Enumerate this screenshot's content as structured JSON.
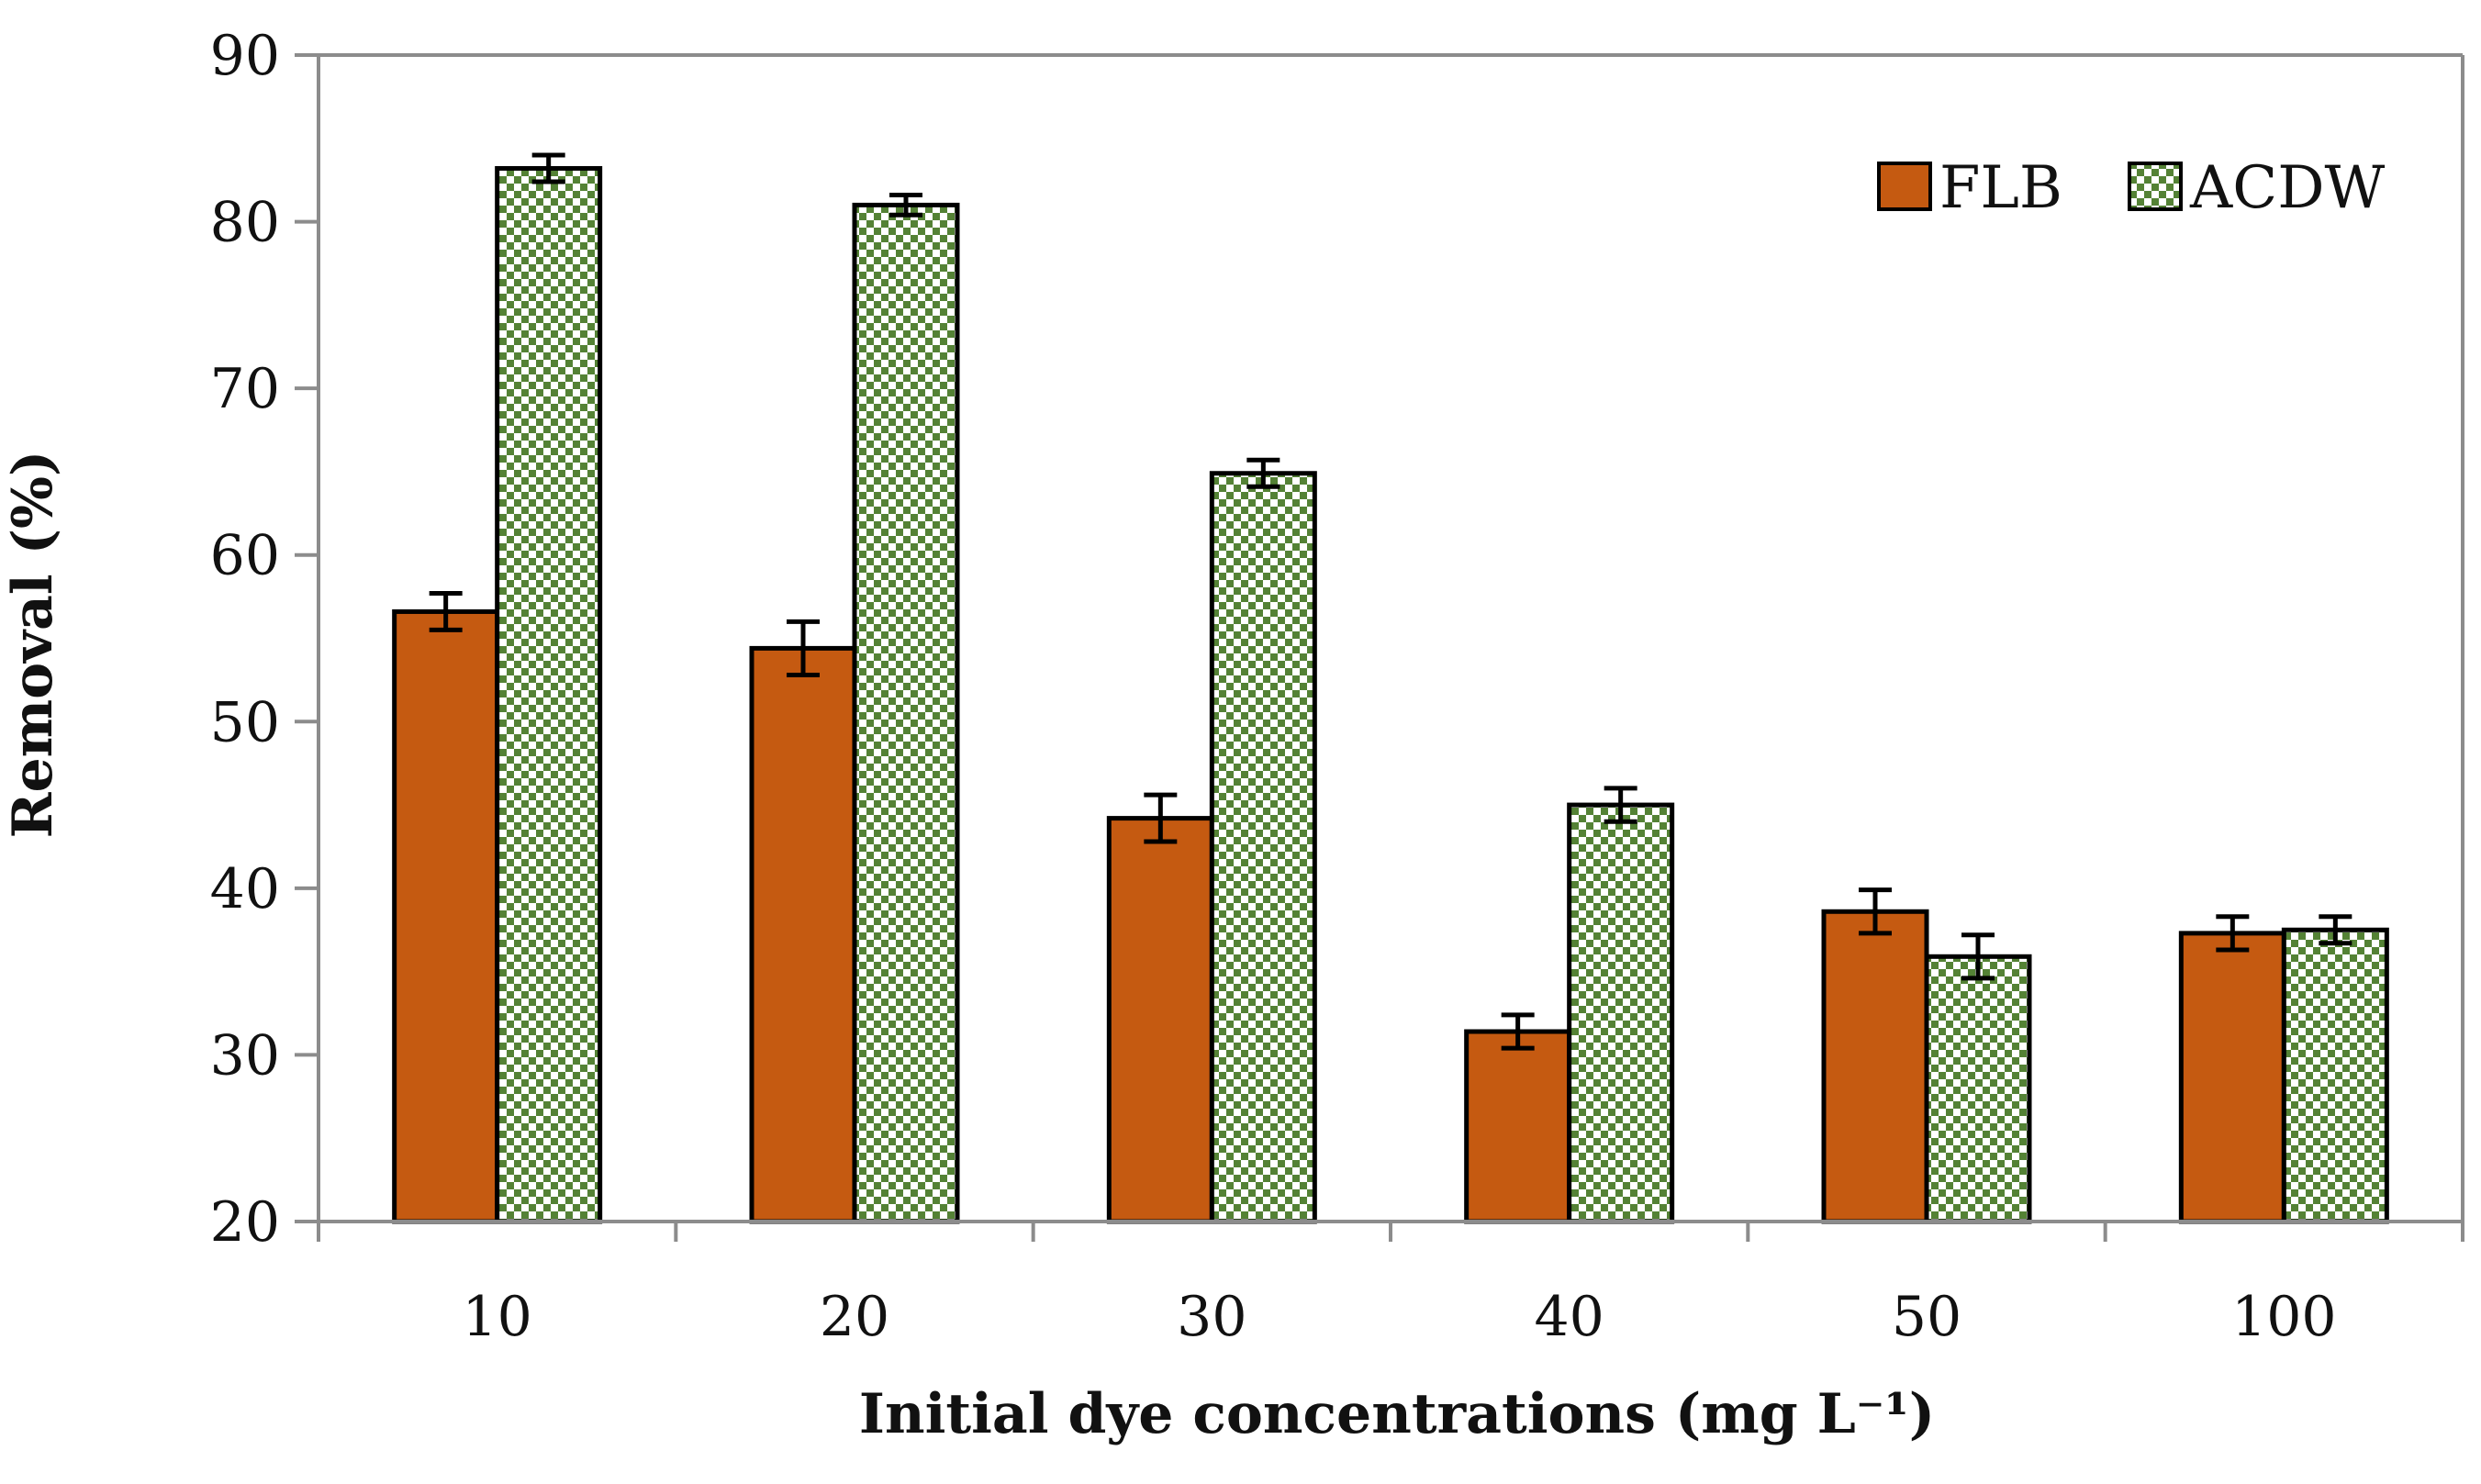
{
  "chart_data": {
    "type": "bar",
    "title": "",
    "xlabel": "Initial dye concentrations (mg L⁻¹)",
    "ylabel": "Removal (%)",
    "categories": [
      "10",
      "20",
      "30",
      "40",
      "50",
      "100"
    ],
    "ylim": [
      20,
      90
    ],
    "yticks": [
      20,
      30,
      40,
      50,
      60,
      70,
      80,
      90
    ],
    "grid": false,
    "legend_position": "top-right",
    "series": [
      {
        "name": "FLB",
        "color": "#c55a11",
        "pattern": "solid",
        "values": [
          56.6,
          54.4,
          44.2,
          31.4,
          38.6,
          37.3
        ],
        "errors": [
          1.1,
          1.6,
          1.4,
          1.0,
          1.3,
          1.0
        ]
      },
      {
        "name": "ACDW",
        "color": "#548235",
        "pattern": "checker",
        "values": [
          83.2,
          81.0,
          64.9,
          45.0,
          35.9,
          37.5
        ],
        "errors": [
          0.8,
          0.6,
          0.8,
          1.0,
          1.3,
          0.8
        ]
      }
    ]
  }
}
